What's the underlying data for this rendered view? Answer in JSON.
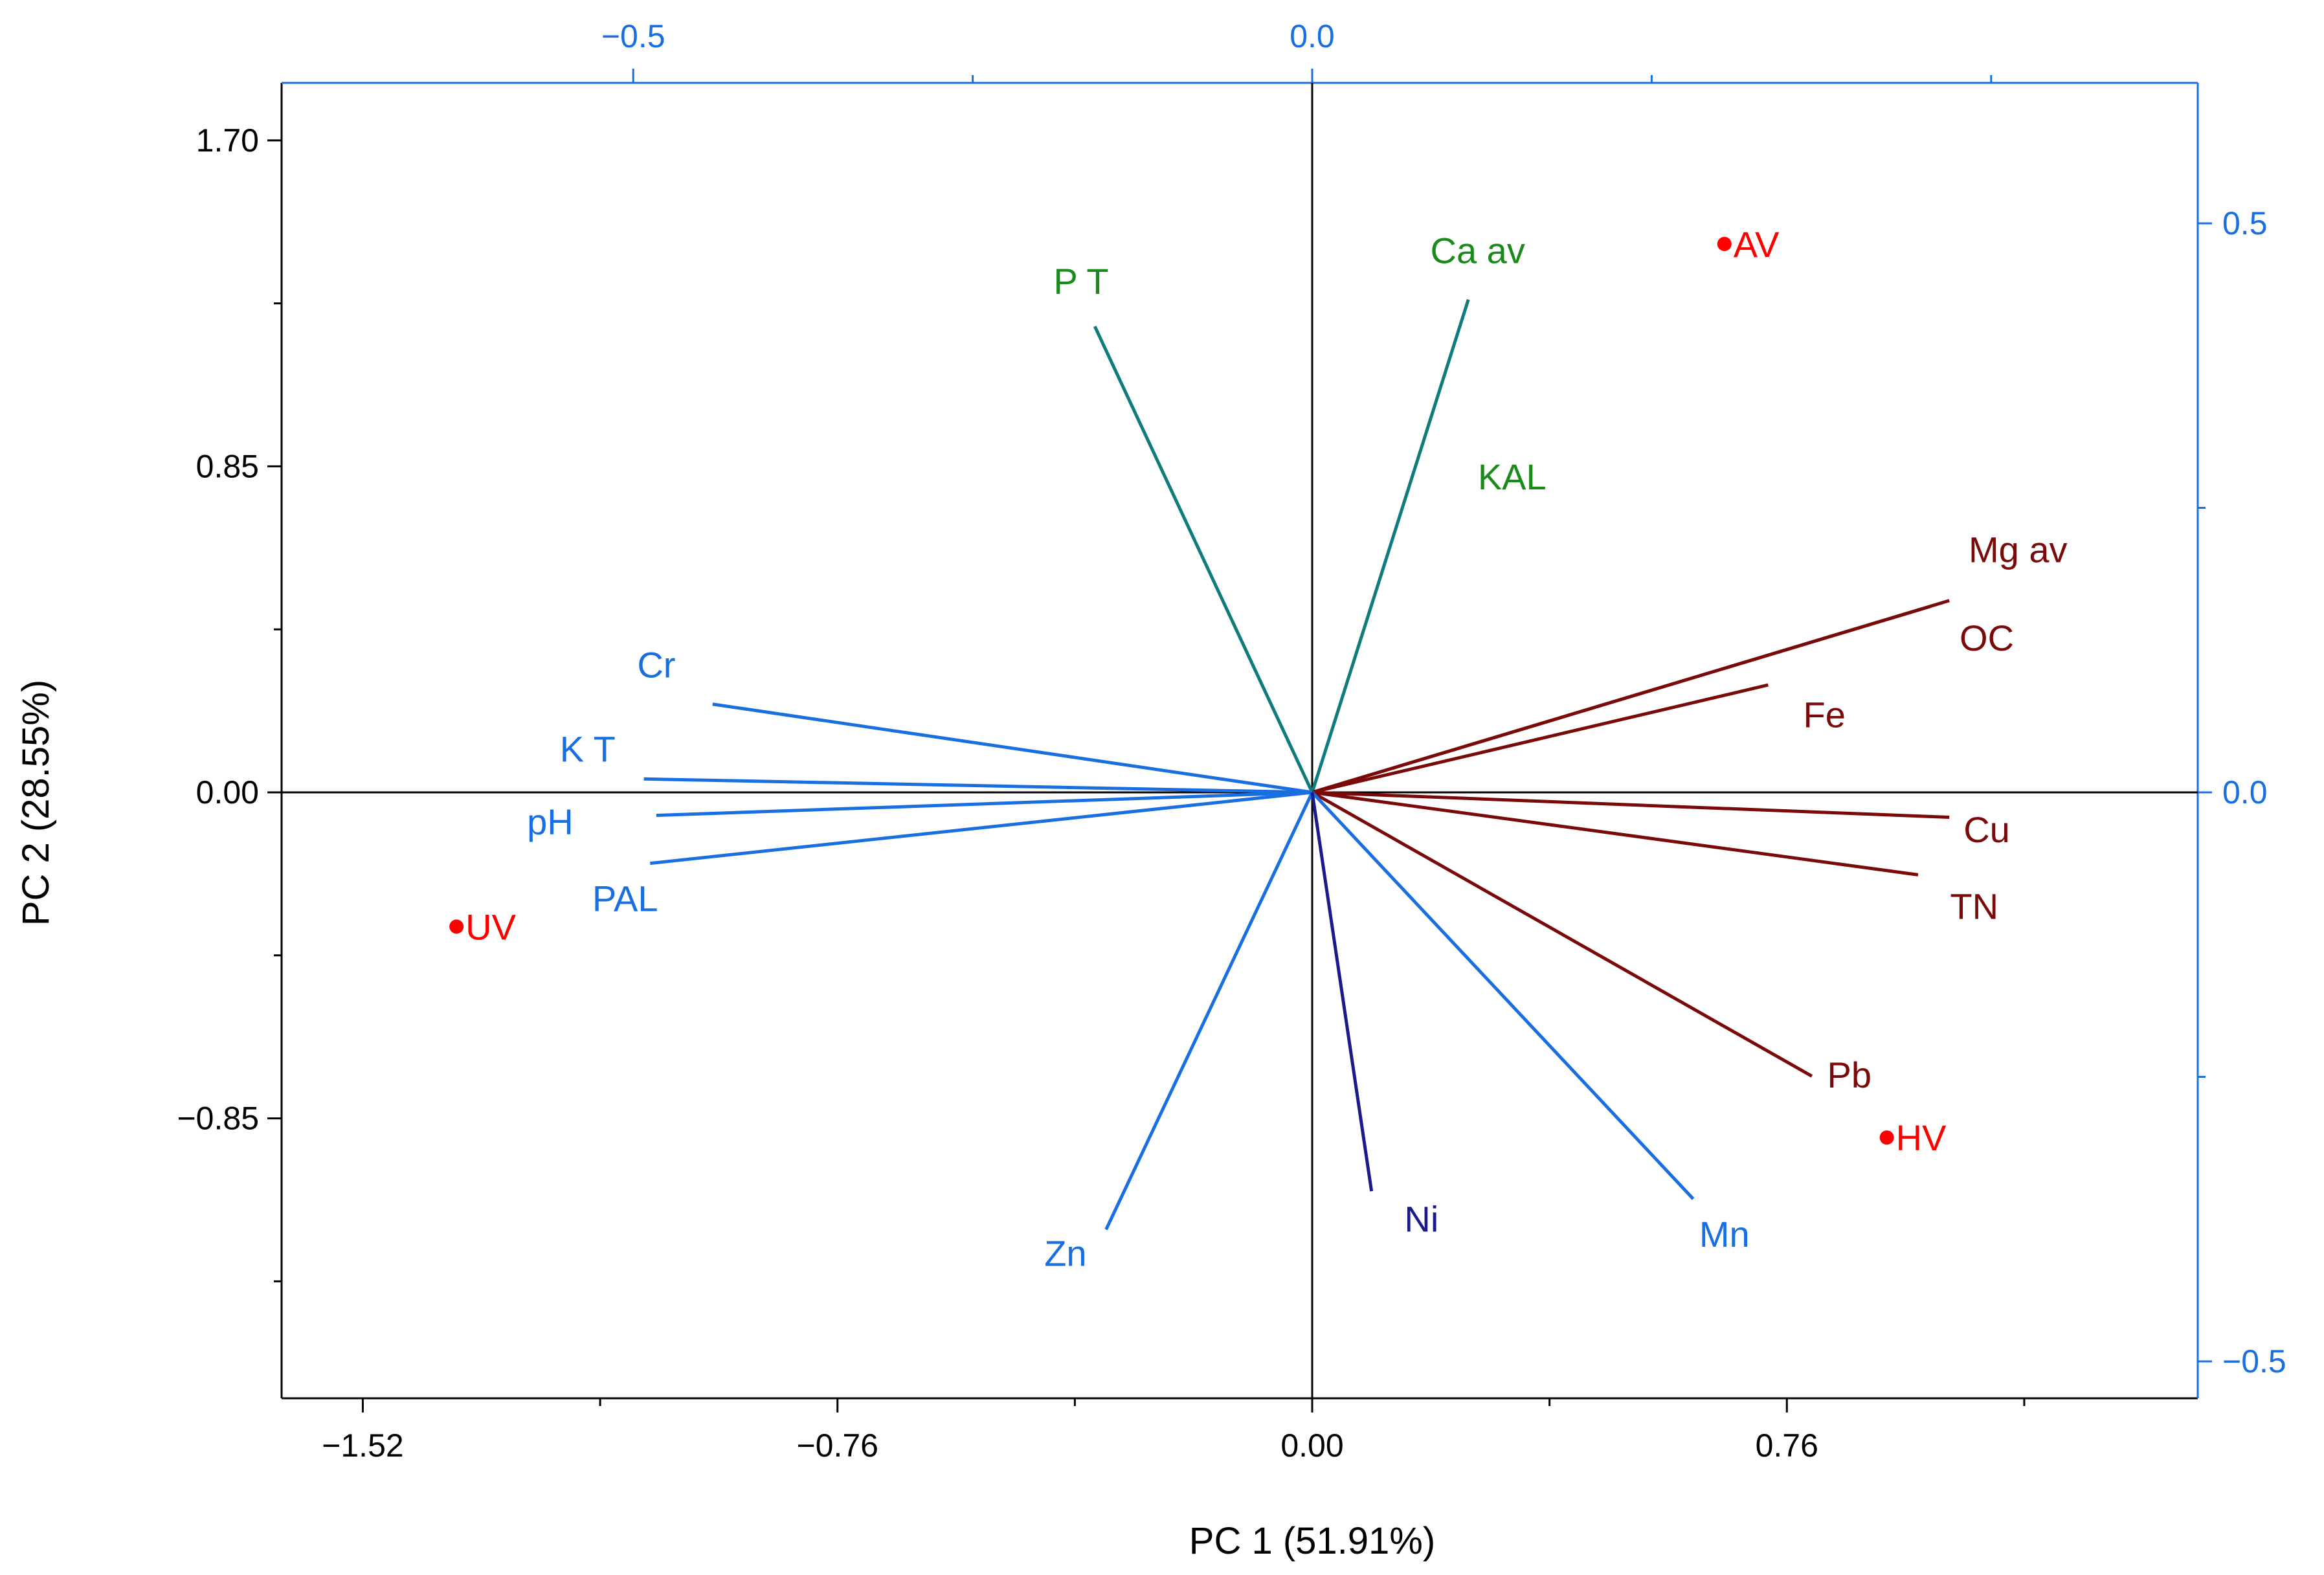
{
  "chart_data": {
    "type": "scatter",
    "subtype": "pca-biplot",
    "xlabel": "PC 1 (51.91%)",
    "ylabel": "PC 2 (28.55%)",
    "xlim": [
      -1.65,
      1.45
    ],
    "ylim": [
      -1.56,
      1.85
    ],
    "x_ticks": [
      {
        "value": -1.52,
        "label": "−1.52"
      },
      {
        "value": -0.76,
        "label": "−0.76"
      },
      {
        "value": 0.0,
        "label": "0.00"
      },
      {
        "value": 0.76,
        "label": "0.76"
      }
    ],
    "y_ticks": [
      {
        "value": 1.7,
        "label": "1.70"
      },
      {
        "value": 0.85,
        "label": "0.85"
      },
      {
        "value": 0.0,
        "label": "0.00"
      },
      {
        "value": -0.85,
        "label": "−0.85"
      }
    ],
    "loading_scale": 2.174,
    "top_axis_ticks": [
      {
        "value": -0.5,
        "label": "−0.5"
      },
      {
        "value": 0.0,
        "label": "0.0"
      }
    ],
    "right_axis_ticks": [
      {
        "value": 0.5,
        "label": "0.5"
      },
      {
        "value": 0.0,
        "label": "0.0"
      },
      {
        "value": -0.5,
        "label": "−0.5"
      }
    ],
    "loadings": [
      {
        "name": "P T",
        "x": -0.348,
        "y": 1.215,
        "color": "#0f7b7b",
        "label": "P T",
        "label_color": "#1a8a1a",
        "lx": -0.37,
        "ly": 1.3
      },
      {
        "name": "Ca av",
        "x": 0.25,
        "y": 1.285,
        "color": "#0f7b7b",
        "label": "Ca av",
        "label_color": "#1a8a1a",
        "lx": 0.265,
        "ly": 1.38
      },
      {
        "name": "KAL",
        "x": null,
        "y": null,
        "color": "#0f7b7b",
        "label": "KAL",
        "label_color": "#1a8a1a",
        "lx": 0.32,
        "ly": 0.79
      },
      {
        "name": "Mg av",
        "x": 1.02,
        "y": 0.5,
        "color": "#7a0a0a",
        "label": "Mg av",
        "label_color": "#7a0a0a",
        "lx": 1.13,
        "ly": 0.6
      },
      {
        "name": "OC",
        "x": 0.99,
        "y": 0.485,
        "color": "#7a0a0a",
        "label": "OC",
        "label_color": "#7a0a0a",
        "lx": 1.08,
        "ly": 0.37
      },
      {
        "name": "Fe",
        "x": 0.73,
        "y": 0.28,
        "color": "#7a0a0a",
        "label": "Fe",
        "label_color": "#7a0a0a",
        "lx": 0.82,
        "ly": 0.17
      },
      {
        "name": "Cu",
        "x": 1.02,
        "y": -0.065,
        "color": "#7a0a0a",
        "label": "Cu",
        "label_color": "#7a0a0a",
        "lx": 1.08,
        "ly": -0.13
      },
      {
        "name": "TN",
        "x": 0.97,
        "y": -0.215,
        "color": "#7a0a0a",
        "label": "TN",
        "label_color": "#7a0a0a",
        "lx": 1.06,
        "ly": -0.33
      },
      {
        "name": "Pb",
        "x": 0.8,
        "y": -0.74,
        "color": "#7a0a0a",
        "label": "Pb",
        "label_color": "#7a0a0a",
        "lx": 0.86,
        "ly": -0.77
      },
      {
        "name": "Cr",
        "x": -0.96,
        "y": 0.23,
        "color": "#1a6fe0",
        "label": "Cr",
        "label_color": "#1a6fe0",
        "lx": -1.05,
        "ly": 0.3
      },
      {
        "name": "K T",
        "x": -1.07,
        "y": 0.035,
        "color": "#1a6fe0",
        "label": "K T",
        "label_color": "#1a6fe0",
        "lx": -1.16,
        "ly": 0.08
      },
      {
        "name": "pH",
        "x": -1.05,
        "y": -0.06,
        "color": "#1a6fe0",
        "label": "pH",
        "label_color": "#1a6fe0",
        "lx": -1.22,
        "ly": -0.11
      },
      {
        "name": "PAL",
        "x": -1.06,
        "y": -0.185,
        "color": "#1a6fe0",
        "label": "PAL",
        "label_color": "#1a6fe0",
        "lx": -1.1,
        "ly": -0.31
      },
      {
        "name": "Zn",
        "x": -0.33,
        "y": -1.14,
        "color": "#1a6fe0",
        "label": "Zn",
        "label_color": "#1a6fe0",
        "lx": -0.395,
        "ly": -1.235
      },
      {
        "name": "Mn",
        "x": 0.61,
        "y": -1.06,
        "color": "#1a6fe0",
        "label": "Mn",
        "label_color": "#1a6fe0",
        "lx": 0.66,
        "ly": -1.185
      },
      {
        "name": "Ni",
        "x": 0.095,
        "y": -1.04,
        "color": "#1a1a8a",
        "label": "Ni",
        "label_color": "#1a1a8a",
        "lx": 0.175,
        "ly": -1.145
      }
    ],
    "scores": [
      {
        "name": "AV",
        "x": 0.66,
        "y": 1.43,
        "color": "#ff0000"
      },
      {
        "name": "UV",
        "x": -1.37,
        "y": -0.35,
        "color": "#ff0000"
      },
      {
        "name": "HV",
        "x": 0.92,
        "y": -0.9,
        "color": "#ff0000"
      }
    ]
  }
}
